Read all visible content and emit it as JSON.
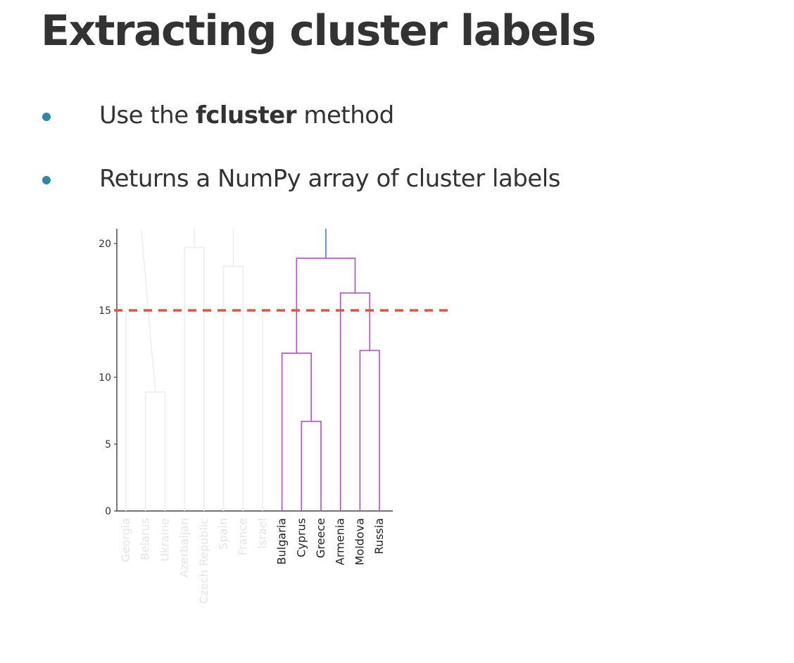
{
  "slide": {
    "title": "Extracting cluster labels",
    "bullets": [
      {
        "pre": "Use the ",
        "bold": "fcluster",
        "post": " method"
      },
      {
        "pre": "Returns a NumPy array of cluster labels",
        "bold": "",
        "post": ""
      }
    ]
  },
  "colors": {
    "title": "#333333",
    "bullet_dot": "#2e86a8",
    "link_main": "#b44cc8",
    "link_root": "#6a8fe0",
    "threshold": "#e8503c",
    "faded": "#ececf2"
  },
  "chart_data": {
    "type": "dendrogram",
    "title": "",
    "xlabel": "",
    "ylabel": "",
    "ylim": [
      0,
      21
    ],
    "yticks": [
      0,
      5,
      10,
      15,
      20
    ],
    "threshold": 15,
    "leaves": [
      "Georgia",
      "Belarus",
      "Ukraine",
      "Azerbaijan",
      "Czech Republic",
      "Spain",
      "France",
      "Israel",
      "Bulgaria",
      "Cyprus",
      "Greece",
      "Armenia",
      "Moldova",
      "Russia"
    ],
    "faded_leaves": [
      "Georgia",
      "Belarus",
      "Ukraine",
      "Azerbaijan",
      "Czech Republic",
      "Spain",
      "France",
      "Israel"
    ],
    "merges": [
      {
        "left": [
          "Belarus"
        ],
        "right": [
          "Ukraine"
        ],
        "height": 8.9,
        "faded": true
      },
      {
        "left": [
          "Azerbaijan"
        ],
        "right": [
          "Czech Republic"
        ],
        "height": 19.7,
        "faded": true
      },
      {
        "left": [
          "Spain"
        ],
        "right": [
          "France"
        ],
        "height": 18.3,
        "faded": true
      },
      {
        "left": [
          "Cyprus"
        ],
        "right": [
          "Greece"
        ],
        "height": 6.7,
        "faded": false
      },
      {
        "left": [
          "Bulgaria"
        ],
        "right": [
          "Cyprus",
          "Greece"
        ],
        "height": 11.8,
        "faded": false
      },
      {
        "left": [
          "Moldova"
        ],
        "right": [
          "Russia"
        ],
        "height": 12.0,
        "faded": false
      },
      {
        "left": [
          "Armenia"
        ],
        "right": [
          "Moldova",
          "Russia"
        ],
        "height": 16.3,
        "faded": false
      },
      {
        "left": [
          "Bulgaria",
          "Cyprus",
          "Greece"
        ],
        "right": [
          "Armenia",
          "Moldova",
          "Russia"
        ],
        "height": 18.9,
        "faded": false
      }
    ]
  }
}
